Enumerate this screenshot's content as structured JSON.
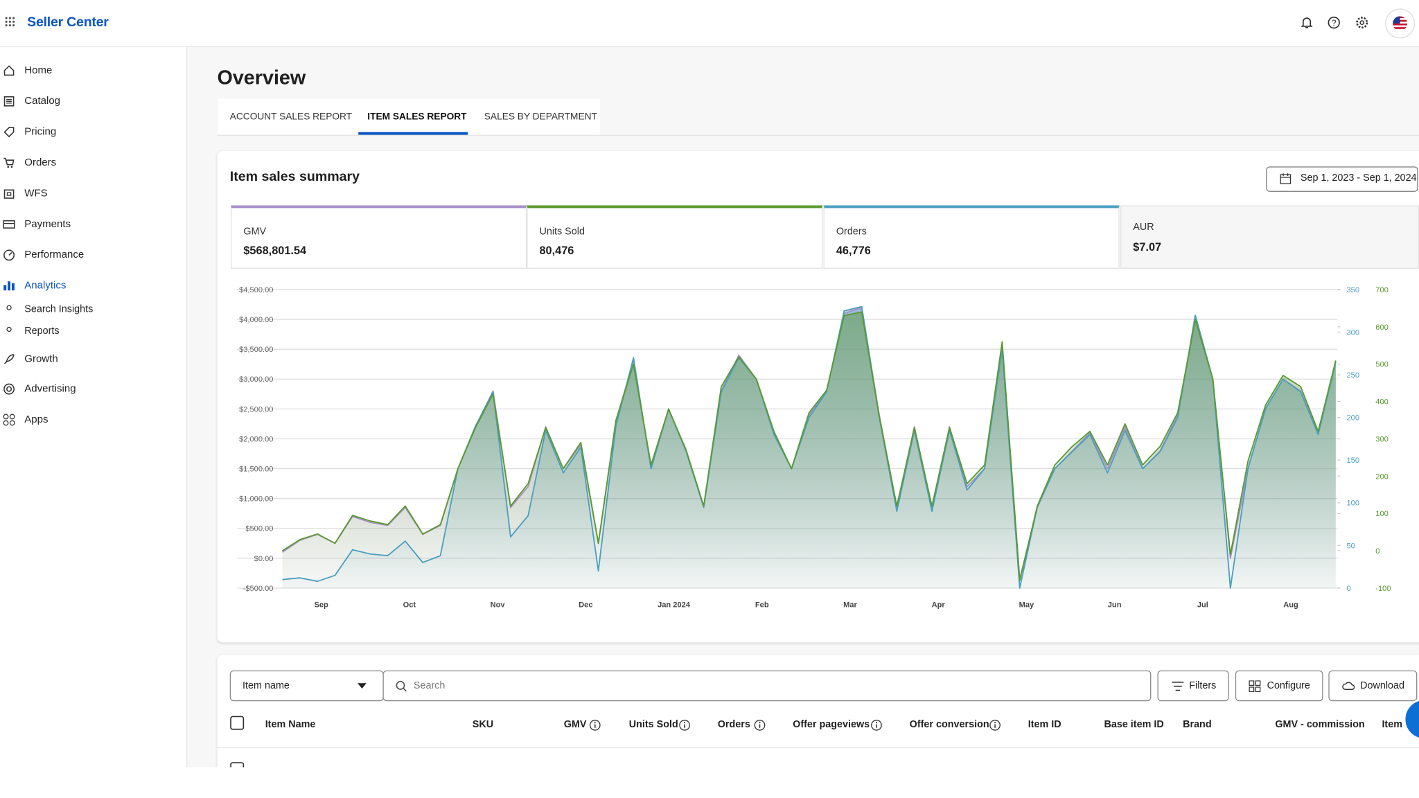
{
  "header": {
    "brand": "Seller Center"
  },
  "sidebar": {
    "items": [
      "Home",
      "Catalog",
      "Pricing",
      "Orders",
      "WFS",
      "Payments",
      "Performance",
      "Analytics"
    ],
    "analytics_children": [
      "Search Insights",
      "Reports"
    ],
    "more_items": [
      "Growth",
      "Advertising",
      "Apps"
    ]
  },
  "page": {
    "title": "Overview",
    "tabs": [
      "ACCOUNT SALES REPORT",
      "ITEM SALES REPORT",
      "SALES BY DEPARTMENT"
    ]
  },
  "summary": {
    "title": "Item sales summary",
    "date_range": "Sep 1, 2023 - Sep 1, 2024",
    "metrics": [
      {
        "label": "GMV",
        "value": "$568,801.54"
      },
      {
        "label": "Units Sold",
        "value": "80,476"
      },
      {
        "label": "Orders",
        "value": "46,776"
      },
      {
        "label": "AUR",
        "value": "$7.07"
      }
    ]
  },
  "chart_data": {
    "type": "line",
    "xtick_labels": [
      "Sep",
      "Oct",
      "Nov",
      "Dec",
      "Jan 2024",
      "Feb",
      "Mar",
      "Apr",
      "May",
      "Jun",
      "Jul",
      "Aug"
    ],
    "series": [
      {
        "name": "GMV",
        "color": "#a98fc9",
        "axis": "y",
        "values": [
          100,
          300,
          400,
          250,
          700,
          600,
          550,
          850,
          400,
          550,
          1500,
          2200,
          2800,
          850,
          1200,
          2200,
          1500,
          1900,
          250,
          2300,
          3300,
          1500,
          2500,
          1800,
          850,
          2800,
          3400,
          3000,
          2100,
          1500,
          2400,
          2800,
          4100,
          4200,
          2400,
          850,
          2200,
          850,
          2200,
          1200,
          1500,
          3600,
          -350,
          850,
          1500,
          1800,
          2100,
          1500,
          2200,
          1500,
          1800,
          2400,
          4000,
          3000,
          0,
          1500,
          2500,
          3000,
          2800,
          2100,
          3300
        ]
      },
      {
        "name": "Orders",
        "color": "#4a9fc0",
        "axis": "y2",
        "values": [
          10,
          12,
          8,
          15,
          45,
          40,
          38,
          55,
          30,
          38,
          140,
          190,
          230,
          60,
          85,
          185,
          135,
          165,
          20,
          190,
          270,
          140,
          210,
          160,
          95,
          230,
          270,
          245,
          180,
          140,
          200,
          230,
          325,
          330,
          200,
          90,
          185,
          90,
          185,
          115,
          140,
          280,
          0,
          95,
          140,
          160,
          180,
          135,
          185,
          140,
          160,
          200,
          320,
          245,
          0,
          140,
          210,
          245,
          230,
          180,
          265
        ]
      },
      {
        "name": "Units Sold",
        "color": "#5a9a2e",
        "axis": "y3",
        "values": [
          0,
          30,
          45,
          20,
          95,
          80,
          70,
          120,
          45,
          70,
          220,
          330,
          420,
          120,
          180,
          330,
          220,
          290,
          20,
          350,
          500,
          230,
          380,
          270,
          120,
          440,
          520,
          460,
          320,
          220,
          370,
          430,
          630,
          640,
          360,
          120,
          330,
          120,
          330,
          180,
          230,
          560,
          -80,
          120,
          230,
          280,
          320,
          230,
          340,
          230,
          280,
          370,
          620,
          460,
          -10,
          240,
          390,
          470,
          440,
          320,
          510
        ]
      }
    ],
    "ylim": [
      -500,
      4500
    ],
    "yticks": [
      {
        "value": -500,
        "label": "-$500.00"
      },
      {
        "value": 0,
        "label": "$0.00"
      },
      {
        "value": 500,
        "label": "$500.00"
      },
      {
        "value": 1000,
        "label": "$1,000.00"
      },
      {
        "value": 1500,
        "label": "$1,500.00"
      },
      {
        "value": 2000,
        "label": "$2,000.00"
      },
      {
        "value": 2500,
        "label": "$2,500.00"
      },
      {
        "value": 3000,
        "label": "$3,000.00"
      },
      {
        "value": 3500,
        "label": "$3,500.00"
      },
      {
        "value": 4000,
        "label": "$4,000.00"
      },
      {
        "value": 4500,
        "label": "$4,500.00"
      }
    ],
    "y2lim": [
      0,
      350
    ],
    "y2ticks": [
      0,
      50,
      100,
      150,
      200,
      250,
      300,
      350
    ],
    "y3lim": [
      -100,
      700
    ],
    "y3ticks": [
      -100,
      0,
      100,
      200,
      300,
      400,
      500,
      600,
      700
    ],
    "grid": true
  },
  "table": {
    "column_select": "Item name",
    "search_placeholder": "Search",
    "buttons": [
      "Filters",
      "Configure",
      "Download"
    ],
    "columns": [
      "Item Name",
      "SKU",
      "GMV",
      "Units Sold",
      "Orders",
      "Offer pageviews",
      "Offer conversion",
      "Item ID",
      "Base item ID",
      "Brand",
      "GMV - commission",
      "Item C"
    ]
  }
}
